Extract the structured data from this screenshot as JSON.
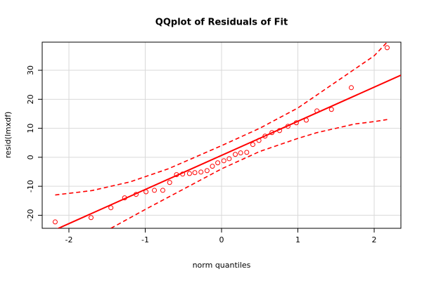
{
  "chart_data": {
    "type": "scatter",
    "title": "QQplot of Residuals of Fit",
    "xlabel": "norm quantiles",
    "ylabel": "resid(lmxdf)",
    "xlim": [
      -2.35,
      2.35
    ],
    "ylim": [
      -24.5,
      39.7
    ],
    "xticks": [
      -2,
      -1,
      0,
      1,
      2
    ],
    "yticks": [
      -20,
      -10,
      0,
      10,
      20,
      30
    ],
    "grid": true,
    "series": [
      {
        "style": "points",
        "color": "#ff0000",
        "x": [
          -2.18,
          -1.71,
          -1.45,
          -1.27,
          -1.12,
          -0.99,
          -0.88,
          -0.77,
          -0.68,
          -0.59,
          -0.51,
          -0.42,
          -0.35,
          -0.27,
          -0.19,
          -0.12,
          -0.05,
          0.03,
          0.1,
          0.18,
          0.25,
          0.33,
          0.41,
          0.49,
          0.57,
          0.66,
          0.76,
          0.87,
          0.98,
          1.11,
          1.25,
          1.44,
          1.7,
          2.17
        ],
        "values": [
          -22.3,
          -20.8,
          -17.4,
          -14.0,
          -12.8,
          -11.9,
          -11.4,
          -11.4,
          -8.7,
          -6.0,
          -5.8,
          -5.6,
          -5.3,
          -5.1,
          -4.6,
          -3.1,
          -1.9,
          -1.2,
          -0.5,
          1.0,
          1.5,
          1.7,
          4.4,
          5.8,
          7.3,
          8.5,
          9.2,
          10.7,
          11.9,
          12.8,
          16.0,
          16.5,
          24.0,
          37.8
        ]
      },
      {
        "style": "line",
        "color": "#ff0000",
        "x": [
          -2.35,
          2.35
        ],
        "values": [
          -27.0,
          28.3
        ]
      },
      {
        "style": "dashed",
        "color": "#ff0000",
        "x": [
          -2.18,
          -1.7,
          -1.2,
          -0.7,
          0,
          0.5,
          1.0,
          1.5,
          2.0,
          2.17
        ],
        "values": [
          -13,
          -11.5,
          -8.5,
          -4,
          4,
          10,
          17,
          26,
          35,
          39.7
        ]
      },
      {
        "style": "dashed",
        "color": "#ff0000",
        "x": [
          -1.45,
          -1.0,
          -0.5,
          0,
          0.5,
          1.0,
          1.25,
          1.5,
          1.75,
          2.0,
          2.17
        ],
        "values": [
          -24.5,
          -18,
          -11,
          -4,
          2,
          6.5,
          8.5,
          10,
          11.5,
          12.3,
          13
        ]
      }
    ]
  }
}
